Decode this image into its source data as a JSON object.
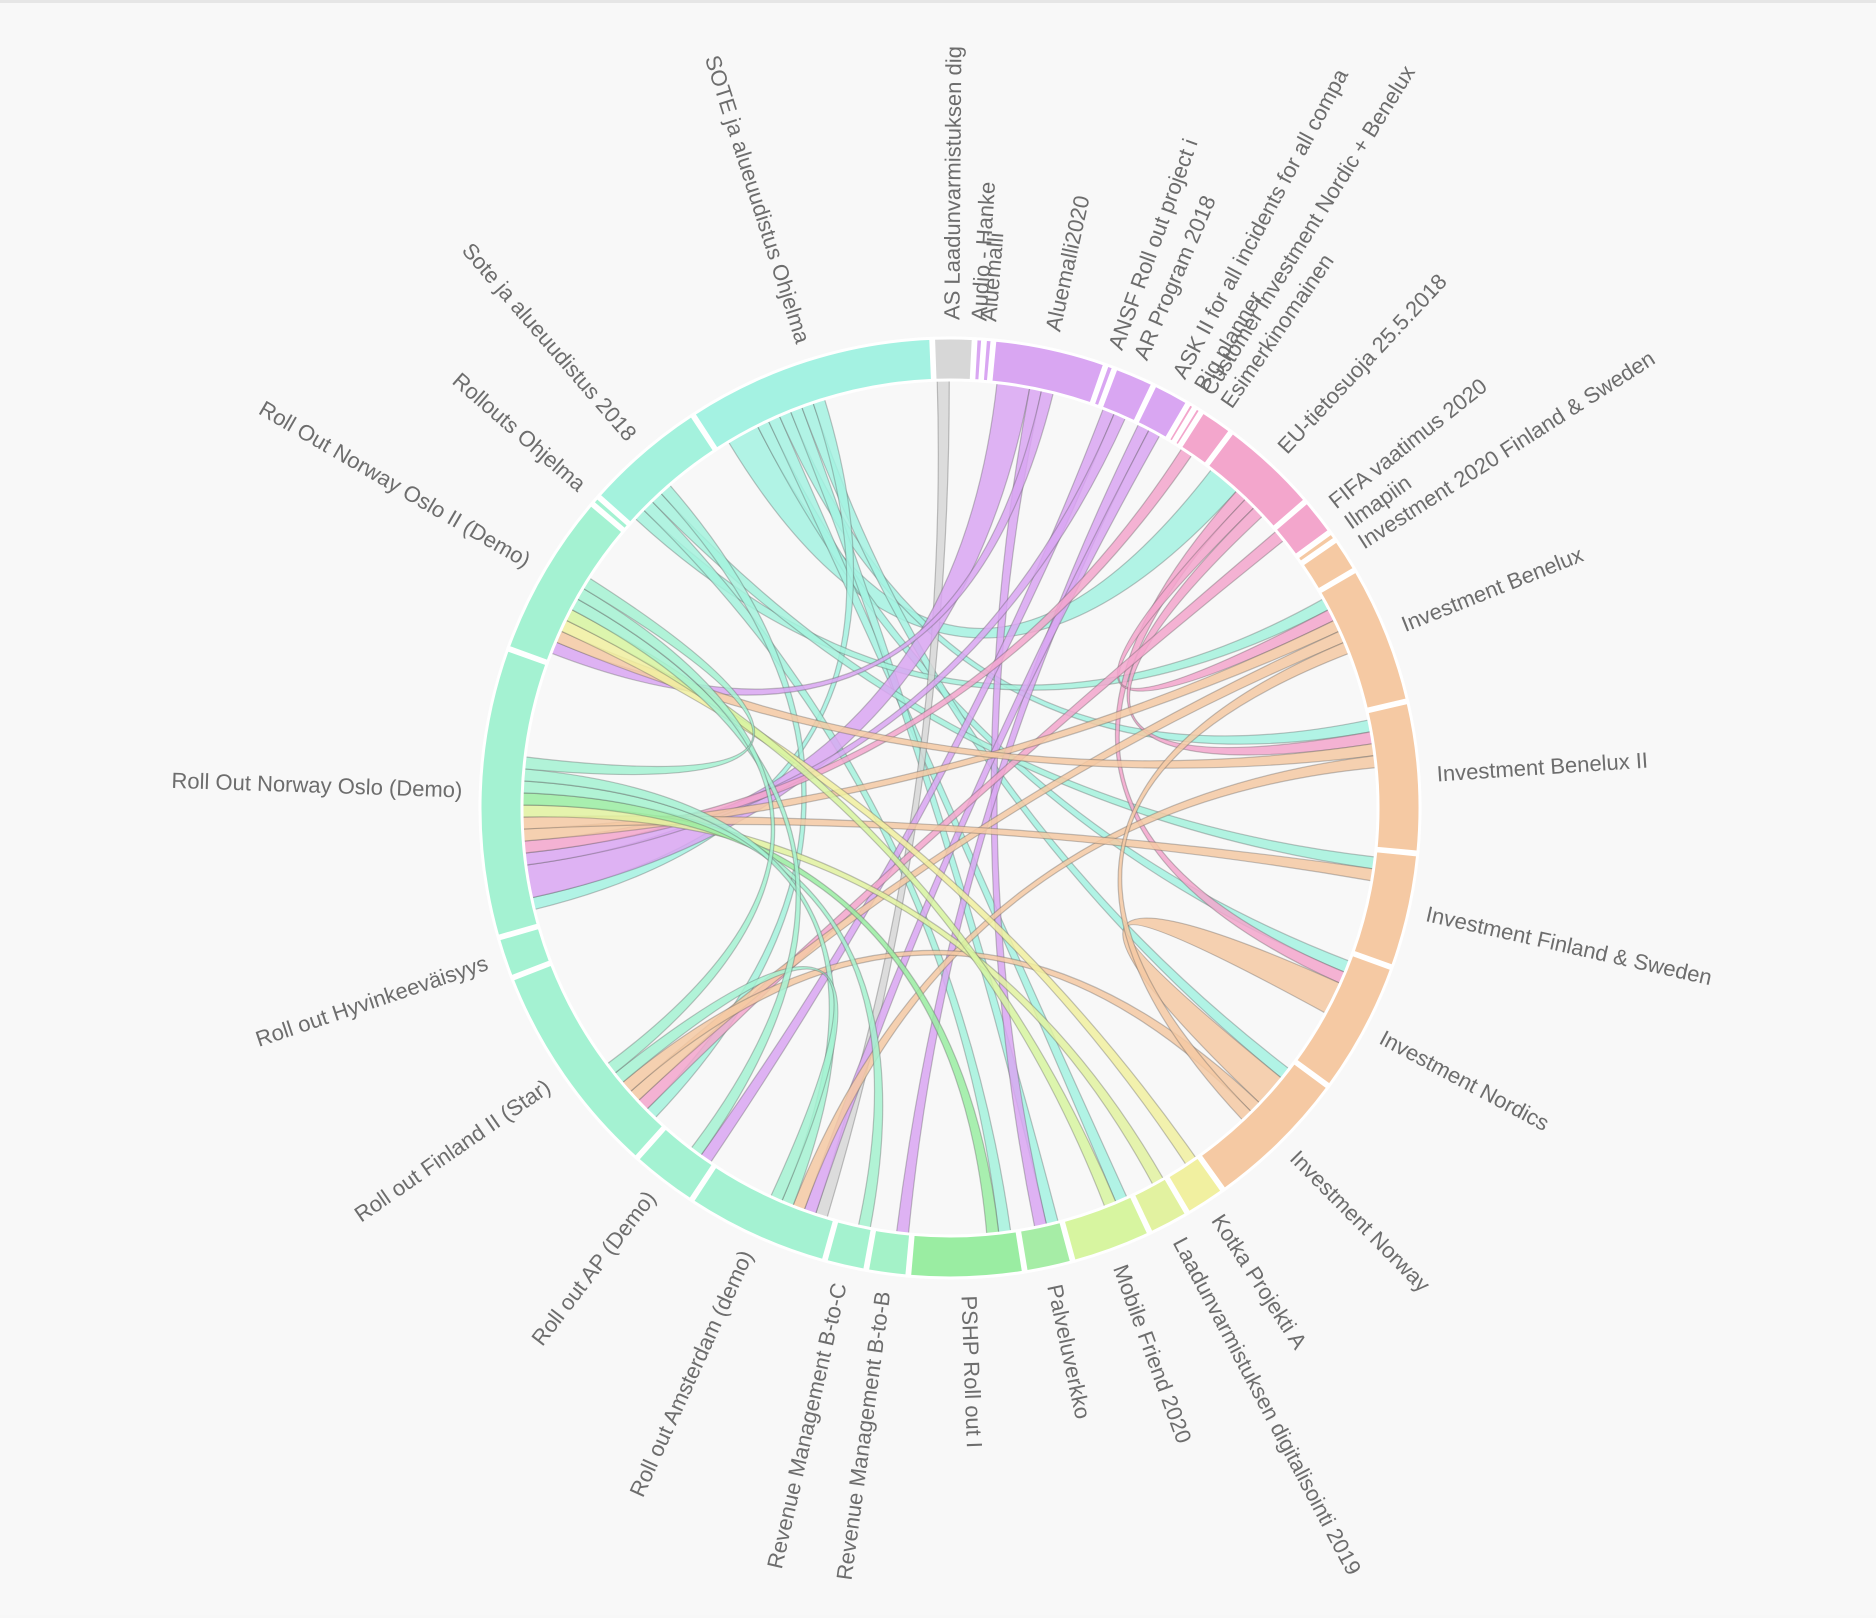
{
  "chart_data": {
    "type": "chord",
    "title": "",
    "segments": [
      {
        "name": "AS Laadunvarmistuksen dig",
        "value": 2.4,
        "color": "#d7d7d7"
      },
      {
        "name": "Audio - Hanke",
        "value": 0.4,
        "color": "#d9a6f2"
      },
      {
        "name": "Aluemalli",
        "value": 0.4,
        "color": "#d9a6f2"
      },
      {
        "name": "Aluemalli2020",
        "value": 6.8,
        "color": "#d9a6f2"
      },
      {
        "name": "ANSF Roll out project i",
        "value": 0.4,
        "color": "#d9a6f2"
      },
      {
        "name": "AR Program 2018",
        "value": 2.4,
        "color": "#d9a6f2"
      },
      {
        "name": "ASK II for all incidents for all compa",
        "value": 2.2,
        "color": "#d9a6f2"
      },
      {
        "name": "Big planner",
        "value": 0.3,
        "color": "#f3a6cc"
      },
      {
        "name": "Customer Investment Nordic + Benelux",
        "value": 0.3,
        "color": "#f3a6cc"
      },
      {
        "name": "Esimerkinomainen",
        "value": 2.0,
        "color": "#f3a6cc"
      },
      {
        "name": "EU-tietosuoja 25.5.2018",
        "value": 6.0,
        "color": "#f3a6cc"
      },
      {
        "name": "FIFA vaatimus 2020",
        "value": 2.2,
        "color": "#f3a6cc"
      },
      {
        "name": "Ilmapiin",
        "value": 0.4,
        "color": "#f5c9a3"
      },
      {
        "name": "Investment 2020 Finland & Sweden",
        "value": 2.0,
        "color": "#f5c9a3"
      },
      {
        "name": "Investment Benelux",
        "value": 8.4,
        "color": "#f5c9a3"
      },
      {
        "name": "Investment Benelux II",
        "value": 9.1,
        "color": "#f5c9a3"
      },
      {
        "name": "Investment Finland & Sweden",
        "value": 6.9,
        "color": "#f5c9a3"
      },
      {
        "name": "Investment Nordics",
        "value": 8.0,
        "color": "#f5c9a3"
      },
      {
        "name": "Investment Norway",
        "value": 8.8,
        "color": "#f5c9a3"
      },
      {
        "name": "Kotka Projekti A",
        "value": 2.4,
        "color": "#f1f0a0"
      },
      {
        "name": "Laadunvarmistuksen digitalisointi 2019",
        "value": 2.4,
        "color": "#e2f2a0"
      },
      {
        "name": "Mobile Friend 2020",
        "value": 4.8,
        "color": "#d7f5a0"
      },
      {
        "name": "Palveluverkko",
        "value": 2.8,
        "color": "#a6eda6"
      },
      {
        "name": "PSHP Roll out I",
        "value": 6.9,
        "color": "#9aeda2"
      },
      {
        "name": "Revenue Management B-to-B",
        "value": 2.4,
        "color": "#a4f2c8"
      },
      {
        "name": "Revenue Management B-to-C",
        "value": 2.4,
        "color": "#a4f2cf"
      },
      {
        "name": "Roll out Amsterdam (demo)",
        "value": 8.7,
        "color": "#a4f2d2"
      },
      {
        "name": "Roll out AP (Demo)",
        "value": 4.0,
        "color": "#a4f2d2"
      },
      {
        "name": "Roll out Finland II (Star)",
        "value": 13.2,
        "color": "#a4f2d2"
      },
      {
        "name": "Roll out Hyvinkeeväisyys",
        "value": 2.4,
        "color": "#a4f2d2"
      },
      {
        "name": "Roll Out Norway Oslo (Demo)",
        "value": 17.6,
        "color": "#a4f2d2"
      },
      {
        "name": "Roll Out Norway Oslo II (Demo)",
        "value": 10.0,
        "color": "#a4f2d2"
      },
      {
        "name": "Rollouts Ohjelma",
        "value": 0.4,
        "color": "#a4f2d2"
      },
      {
        "name": "Sote ja alueuudistus 2018",
        "value": 7.4,
        "color": "#a4f2dd"
      },
      {
        "name": "SOTE ja alueuudistus Ohjelma",
        "value": 15.2,
        "color": "#a4f2e2"
      }
    ],
    "links": [
      {
        "source": "SOTE ja alueuudistus Ohjelma",
        "target": "EU-tietosuoja 25.5.2018",
        "value": 2.2
      },
      {
        "source": "SOTE ja alueuudistus Ohjelma",
        "target": "Investment Nordics",
        "value": 0.8
      },
      {
        "source": "SOTE ja alueuudistus Ohjelma",
        "target": "Mobile Friend 2020",
        "value": 0.8
      },
      {
        "source": "SOTE ja alueuudistus Ohjelma",
        "target": "Investment Benelux II",
        "value": 0.8
      },
      {
        "source": "SOTE ja alueuudistus Ohjelma",
        "target": "Palveluverkko",
        "value": 0.8
      },
      {
        "source": "SOTE ja alueuudistus Ohjelma",
        "target": "Investment Norway",
        "value": 0.8
      },
      {
        "source": "SOTE ja alueuudistus Ohjelma",
        "target": "Roll Out Norway Oslo (Demo)",
        "value": 0.8
      },
      {
        "source": "Sote ja alueuudistus 2018",
        "target": "Investment Benelux",
        "value": 0.8
      },
      {
        "source": "Sote ja alueuudistus 2018",
        "target": "PSHP Roll out I",
        "value": 0.8
      },
      {
        "source": "Sote ja alueuudistus 2018",
        "target": "Investment Finland & Sweden",
        "value": 0.8
      },
      {
        "source": "Sote ja alueuudistus 2018",
        "target": "Roll out Finland II (Star)",
        "value": 0.8
      },
      {
        "source": "AS Laadunvarmistuksen dig",
        "target": "Roll out Amsterdam (demo)",
        "value": 0.8
      },
      {
        "source": "Aluemalli2020",
        "target": "Roll Out Norway Oslo (Demo)",
        "value": 2.2
      },
      {
        "source": "Aluemalli2020",
        "target": "Palveluverkko",
        "value": 0.8
      },
      {
        "source": "Aluemalli2020",
        "target": "Roll Out Norway Oslo II (Demo)",
        "value": 0.8
      },
      {
        "source": "AR Program 2018",
        "target": "Roll out AP (Demo)",
        "value": 0.8
      },
      {
        "source": "AR Program 2018",
        "target": "Roll Out Norway Oslo (Demo)",
        "value": 0.8
      },
      {
        "source": "ASK II for all incidents for all compa",
        "target": "Revenue Management B-to-B",
        "value": 0.8
      },
      {
        "source": "ASK II for all incidents for all compa",
        "target": "Roll out Amsterdam (demo)",
        "value": 0.8
      },
      {
        "source": "EU-tietosuoja 25.5.2018",
        "target": "Investment Nordics",
        "value": 0.8
      },
      {
        "source": "EU-tietosuoja 25.5.2018",
        "target": "Investment Benelux",
        "value": 0.8
      },
      {
        "source": "EU-tietosuoja 25.5.2018",
        "target": "Investment Benelux II",
        "value": 0.8
      },
      {
        "source": "FIFA vaatimus 2020",
        "target": "Roll out Finland II (Star)",
        "value": 0.8
      },
      {
        "source": "Esimerkinomainen",
        "target": "Roll Out Norway Oslo (Demo)",
        "value": 0.8
      },
      {
        "source": "Investment Benelux",
        "target": "Roll Out Norway Oslo (Demo)",
        "value": 0.8
      },
      {
        "source": "Investment Benelux",
        "target": "Roll out Finland II (Star)",
        "value": 0.8
      },
      {
        "source": "Investment Benelux II",
        "target": "Roll Out Norway Oslo II (Demo)",
        "value": 0.8
      },
      {
        "source": "Investment Benelux II",
        "target": "Roll out Amsterdam (demo)",
        "value": 0.8
      },
      {
        "source": "Investment Finland & Sweden",
        "target": "Roll Out Norway Oslo (Demo)",
        "value": 0.8
      },
      {
        "source": "Investment Nordics",
        "target": "Investment Norway",
        "value": 2.2
      },
      {
        "source": "Investment Norway",
        "target": "Roll out Finland II (Star)",
        "value": 0.8
      },
      {
        "source": "Investment Norway",
        "target": "Investment Benelux",
        "value": 0.8
      },
      {
        "source": "Kotka Projekti A",
        "target": "Roll Out Norway Oslo II (Demo)",
        "value": 0.8
      },
      {
        "source": "Laadunvarmistuksen digitalisointi 2019",
        "target": "Roll Out Norway Oslo (Demo)",
        "value": 0.8
      },
      {
        "source": "Mobile Friend 2020",
        "target": "Roll Out Norway Oslo II (Demo)",
        "value": 0.8
      },
      {
        "source": "PSHP Roll out I",
        "target": "Roll Out Norway Oslo (Demo)",
        "value": 0.8
      },
      {
        "source": "Revenue Management B-to-C",
        "target": "Roll Out Norway Oslo (Demo)",
        "value": 0.8
      },
      {
        "source": "Roll out Amsterdam (demo)",
        "target": "Roll Out Norway Oslo (Demo)",
        "value": 0.8
      },
      {
        "source": "Roll out Amsterdam (demo)",
        "target": "Roll out Finland II (Star)",
        "value": 0.8
      },
      {
        "source": "Roll out AP (Demo)",
        "target": "Roll Out Norway Oslo II (Demo)",
        "value": 0.8
      },
      {
        "source": "Roll out Finland II (Star)",
        "target": "Roll Out Norway Oslo II (Demo)",
        "value": 0.8
      },
      {
        "source": "Roll Out Norway Oslo (Demo)",
        "target": "Roll Out Norway Oslo II (Demo)",
        "value": 0.8
      }
    ]
  }
}
